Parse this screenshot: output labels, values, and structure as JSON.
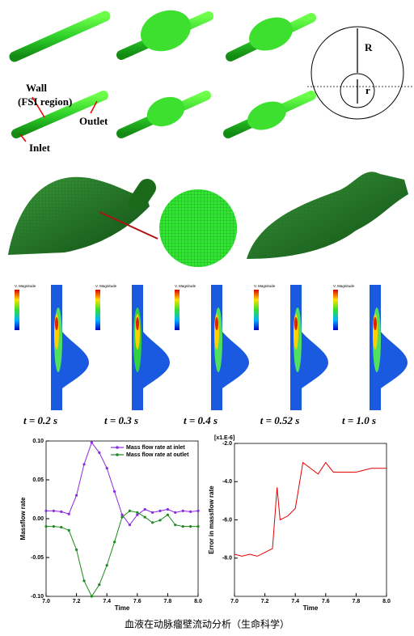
{
  "diagram": {
    "wall": "Wall",
    "fsi": "(FSI region)",
    "outlet": "Outlet",
    "inlet": "Inlet",
    "big_radius": "R",
    "small_radius": "r"
  },
  "contour_legend_title": "V, Magnitude",
  "contours": [
    {
      "time": "t = 0.2 s"
    },
    {
      "time": "t = 0.3 s"
    },
    {
      "time": "t = 0.4 s"
    },
    {
      "time": "t = 0.52 s"
    },
    {
      "time": "t = 1.0 s"
    }
  ],
  "chart_data": [
    {
      "type": "line",
      "xlabel": "Time",
      "ylabel": "Massflow rate",
      "xlim": [
        7.0,
        8.0
      ],
      "xticks": [
        {
          "value": 7.0,
          "label": "7.0"
        },
        {
          "value": 7.2,
          "label": "7.2"
        },
        {
          "value": 7.4,
          "label": "7.4"
        },
        {
          "value": 7.6,
          "label": "7.6"
        },
        {
          "value": 7.8,
          "label": "7.8"
        },
        {
          "value": 8.0,
          "label": "8.0"
        }
      ],
      "ylim": [
        -0.1,
        0.1
      ],
      "yticks": [
        {
          "value": -0.1,
          "label": "-0.10"
        },
        {
          "value": -0.05,
          "label": "-0.05"
        },
        {
          "value": 0,
          "label": "0.00"
        },
        {
          "value": 0.05,
          "label": "0.05"
        },
        {
          "value": 0.1,
          "label": "0.10"
        }
      ],
      "x": [
        7.0,
        7.05,
        7.1,
        7.15,
        7.2,
        7.25,
        7.3,
        7.35,
        7.4,
        7.45,
        7.5,
        7.55,
        7.6,
        7.65,
        7.7,
        7.75,
        7.8,
        7.85,
        7.9,
        7.95,
        8.0
      ],
      "series": [
        {
          "name": "Mass flow rate at inlet",
          "color": "#8a2be2",
          "values": [
            0.01,
            0.01,
            0.009,
            0.006,
            0.03,
            0.07,
            0.098,
            0.085,
            0.065,
            0.035,
            0.005,
            -0.008,
            0.005,
            0.012,
            0.008,
            0.01,
            0.012,
            0.008,
            0.01,
            0.009,
            0.01
          ]
        },
        {
          "name": "Mass flow rate at outlet",
          "color": "#1e8a1e",
          "values": [
            -0.01,
            -0.01,
            -0.011,
            -0.015,
            -0.04,
            -0.08,
            -0.1,
            -0.085,
            -0.06,
            -0.03,
            0.002,
            0.01,
            0.008,
            0.002,
            -0.005,
            -0.002,
            0.005,
            -0.008,
            -0.01,
            -0.01,
            -0.01
          ]
        }
      ],
      "legend": "upper right"
    },
    {
      "type": "line",
      "xlabel": "Time",
      "ylabel": "Error in massflow rate",
      "y_multiplier": "[x1.E-6]",
      "xlim": [
        7.0,
        8.0
      ],
      "xticks": [
        {
          "value": 7.0,
          "label": "7.0"
        },
        {
          "value": 7.2,
          "label": "7.2"
        },
        {
          "value": 7.4,
          "label": "7.4"
        },
        {
          "value": 7.6,
          "label": "7.6"
        },
        {
          "value": 7.8,
          "label": "7.8"
        },
        {
          "value": 8.0,
          "label": "8.0"
        }
      ],
      "ylim": [
        -10,
        -2
      ],
      "yticks": [
        {
          "value": -8,
          "label": "-8.0"
        },
        {
          "value": -6,
          "label": "-6.0"
        },
        {
          "value": -4,
          "label": "-4.0"
        },
        {
          "value": -2,
          "label": "-2.0"
        }
      ],
      "x": [
        7.0,
        7.05,
        7.1,
        7.15,
        7.2,
        7.25,
        7.28,
        7.3,
        7.35,
        7.4,
        7.45,
        7.5,
        7.55,
        7.6,
        7.65,
        7.7,
        7.8,
        7.9,
        8.0
      ],
      "series": [
        {
          "name": null,
          "color": "#e00000",
          "values": [
            -7.8,
            -7.9,
            -7.8,
            -7.9,
            -7.7,
            -7.5,
            -4.3,
            -6.0,
            -5.8,
            -5.4,
            -3.0,
            -3.3,
            -3.6,
            -3.0,
            -3.5,
            -3.5,
            -3.5,
            -3.3,
            -3.3
          ]
        }
      ]
    }
  ],
  "caption": "血液在动脉瘤壁流动分析（生命科学）"
}
